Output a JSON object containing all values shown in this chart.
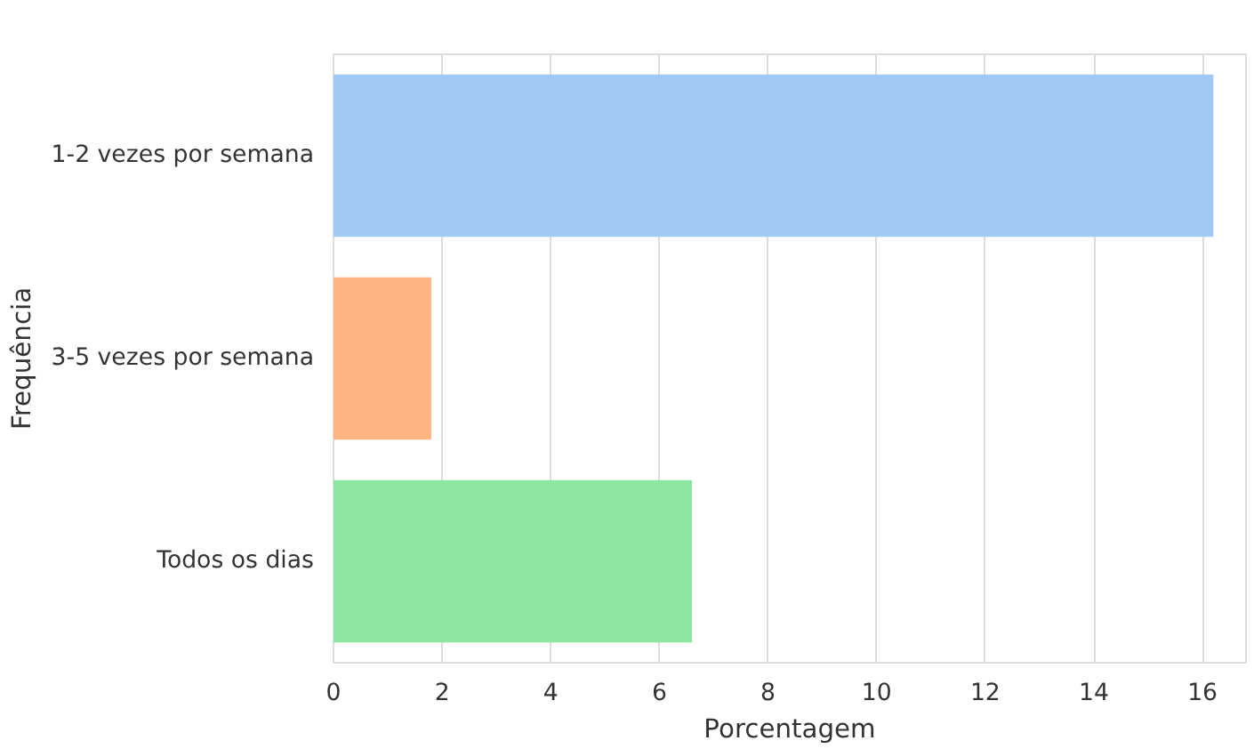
{
  "chart_data": {
    "type": "bar",
    "orientation": "horizontal",
    "xlabel": "Porcentagem",
    "ylabel": "Frequência",
    "categories": [
      "1-2 vezes por semana",
      "3-5 vezes por semana",
      "Todos os dias"
    ],
    "values": [
      16.2,
      1.8,
      6.6
    ],
    "colors": [
      "#a1c9f4",
      "#ffb482",
      "#8de5a1"
    ],
    "xlim": [
      0,
      16.8
    ],
    "xticks": [
      0,
      2,
      4,
      6,
      8,
      10,
      12,
      14,
      16
    ],
    "grid": "x"
  }
}
